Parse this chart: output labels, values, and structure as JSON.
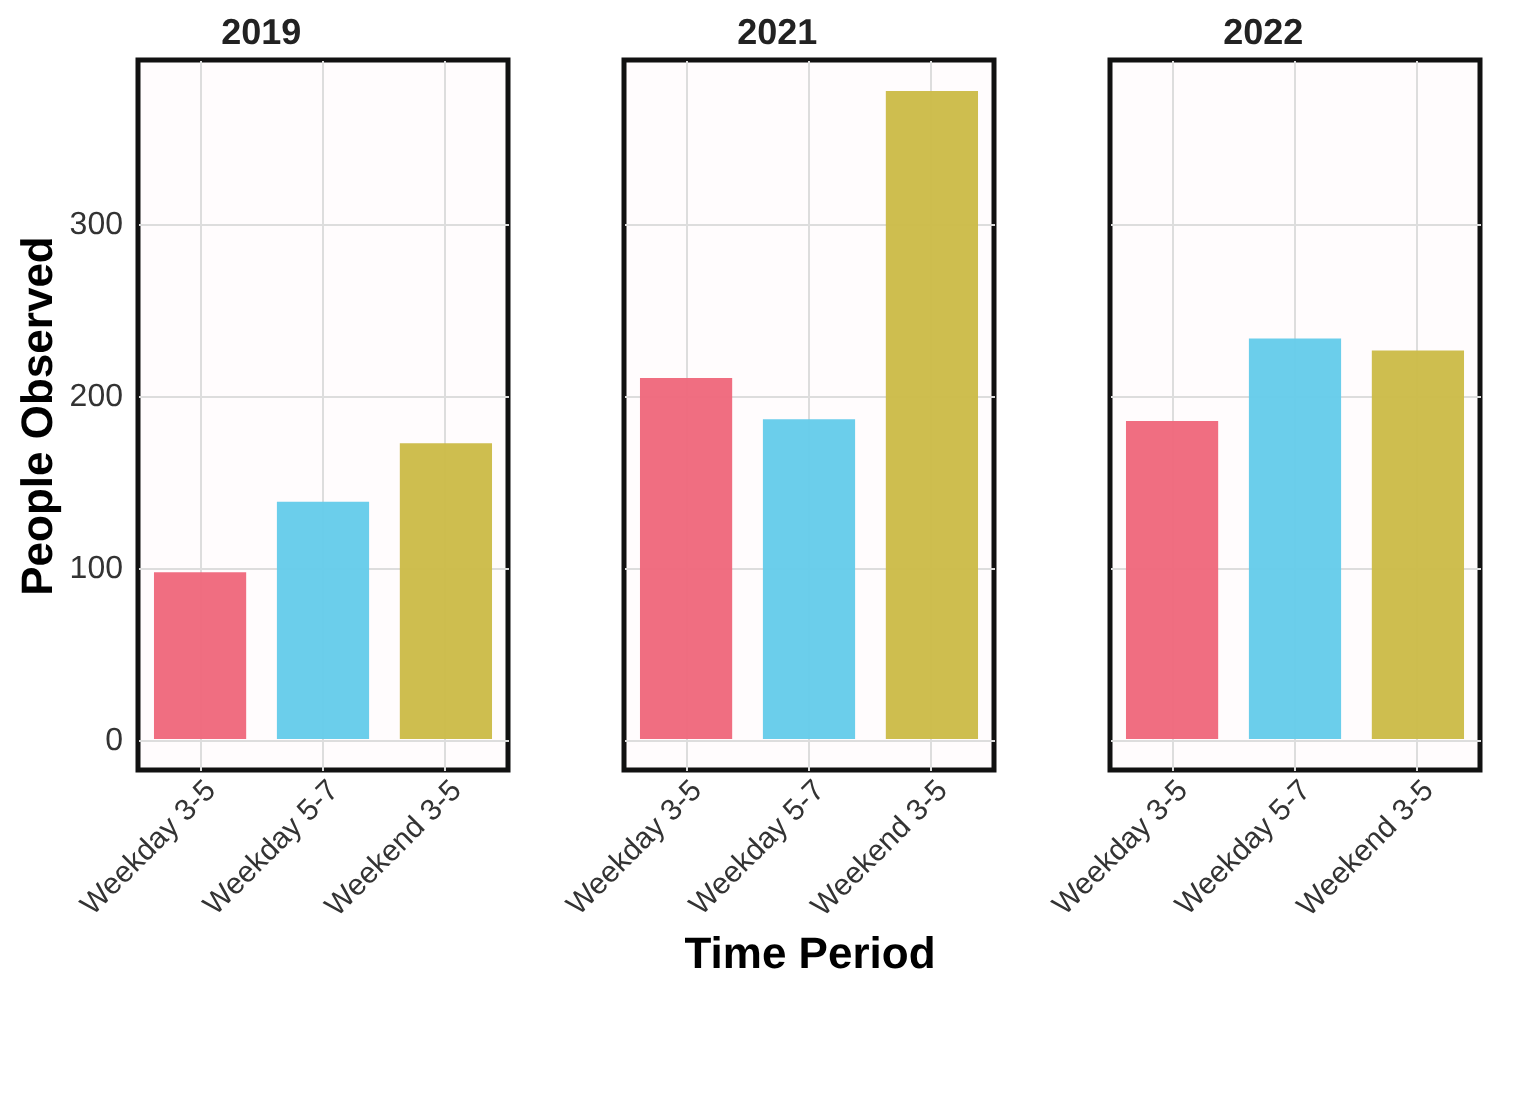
{
  "chart_data": [
    {
      "type": "bar",
      "title": "2019",
      "ylabel": "People Observed",
      "categories": [
        "Weekday 3-5",
        "Weekday 5-7",
        "Weekend 3-5"
      ],
      "values": [
        97,
        138,
        172
      ],
      "colors": [
        "#ef667a",
        "#63cbea",
        "#cbba46"
      ],
      "ylim": [
        -18,
        395
      ],
      "yticks": [
        0,
        100,
        200,
        300
      ],
      "grid": true
    },
    {
      "type": "bar",
      "title": "2021",
      "xlabel": "Time Period",
      "categories": [
        "Weekday 3-5",
        "Weekday 5-7",
        "Weekend 3-5"
      ],
      "values": [
        210,
        186,
        377
      ],
      "colors": [
        "#ef667a",
        "#63cbea",
        "#cbba46"
      ],
      "ylim": [
        -18,
        395
      ],
      "yticks": [
        0,
        100,
        200,
        300
      ],
      "grid": true,
      "tick_labels": "x"
    },
    {
      "type": "bar",
      "title": "2022",
      "categories": [
        "Weekday 3-5",
        "Weekday 5-7",
        "Weekend 3-5"
      ],
      "values": [
        185,
        233,
        226
      ],
      "colors": [
        "#ef667a",
        "#63cbea",
        "#cbba46"
      ],
      "ylim": [
        -18,
        395
      ],
      "yticks": [
        0,
        100,
        200,
        300
      ],
      "grid": true,
      "tick_labels": "x"
    }
  ]
}
